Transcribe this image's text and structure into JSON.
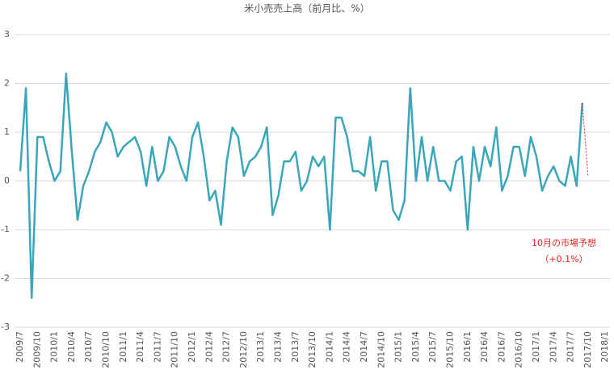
{
  "chart_data": {
    "type": "line",
    "title": "米小売売上高（前月比、%）",
    "categories": [
      "2009/7",
      null,
      null,
      "2009/10",
      null,
      null,
      "2010/1",
      null,
      null,
      "2010/4",
      null,
      null,
      "2010/7",
      null,
      null,
      "2010/10",
      null,
      null,
      "2011/1",
      null,
      null,
      "2011/4",
      null,
      null,
      "2011/7",
      null,
      null,
      "2011/10",
      null,
      null,
      "2012/1",
      null,
      null,
      "2012/4",
      null,
      null,
      "2012/7",
      null,
      null,
      "2012/10",
      null,
      null,
      "2013/1",
      null,
      null,
      "2013/4",
      null,
      null,
      "2013/7",
      null,
      null,
      "2013/10",
      null,
      null,
      "2014/1",
      null,
      null,
      "2014/4",
      null,
      null,
      "2014/7",
      null,
      null,
      "2014/10",
      null,
      null,
      "2015/1",
      null,
      null,
      "2015/4",
      null,
      null,
      "2015/7",
      null,
      null,
      "2015/10",
      null,
      null,
      "2016/1",
      null,
      null,
      "2016/4",
      null,
      null,
      "2016/7",
      null,
      null,
      "2016/10",
      null,
      null,
      "2017/1",
      null,
      null,
      "2017/4",
      null,
      null,
      "2017/7",
      null,
      null,
      "2017/10",
      null,
      null,
      "2018/1"
    ],
    "values": [
      0.2,
      1.9,
      -2.4,
      0.9,
      0.9,
      0.4,
      0.0,
      0.2,
      2.2,
      0.6,
      -0.8,
      -0.1,
      0.2,
      0.6,
      0.8,
      1.2,
      1.0,
      0.5,
      0.7,
      0.8,
      0.9,
      0.6,
      -0.1,
      0.7,
      0.0,
      0.2,
      0.9,
      0.7,
      0.3,
      0.0,
      0.9,
      1.2,
      0.5,
      -0.4,
      -0.2,
      -0.9,
      0.4,
      1.1,
      0.9,
      0.1,
      0.4,
      0.5,
      0.7,
      1.1,
      -0.7,
      -0.3,
      0.4,
      0.4,
      0.6,
      -0.2,
      0.0,
      0.5,
      0.3,
      0.5,
      -1.0,
      1.3,
      1.3,
      0.9,
      0.2,
      0.2,
      0.1,
      0.9,
      -0.2,
      0.4,
      0.4,
      -0.6,
      -0.8,
      -0.4,
      1.9,
      0.0,
      0.9,
      0.0,
      0.7,
      0.0,
      0.0,
      -0.2,
      0.4,
      0.5,
      -1.0,
      0.7,
      0.0,
      0.7,
      0.3,
      1.1,
      -0.2,
      0.1,
      0.7,
      0.7,
      0.1,
      0.9,
      0.5,
      -0.2,
      0.1,
      0.3,
      0.0,
      -0.1,
      0.5,
      -0.1,
      1.6,
      null,
      null,
      null,
      null
    ],
    "color": "#3aa6ba",
    "ylim": [
      -3,
      3
    ],
    "yticks": [
      -3,
      -2,
      -1,
      0,
      1,
      2,
      3
    ],
    "grid": true,
    "annotation": {
      "lines": [
        "10月の市場予想",
        "（+0.1%）"
      ],
      "value": 0.1,
      "color": "#e8201c"
    }
  }
}
